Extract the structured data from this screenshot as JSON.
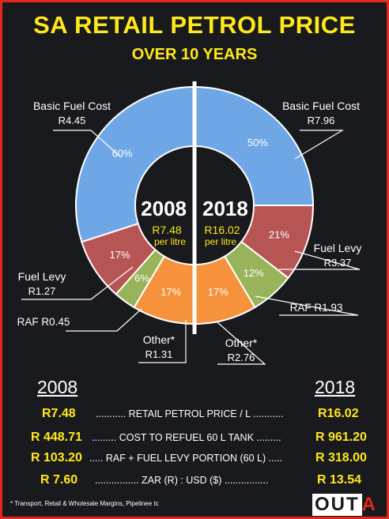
{
  "header": {
    "title": "SA RETAIL PETROL PRICE",
    "subtitle": "OVER 10 YEARS"
  },
  "chart_data": {
    "type": "pie",
    "title": "SA RETAIL PETROL PRICE",
    "subtitle": "OVER 10 YEARS",
    "charts": [
      {
        "year": "2008",
        "total": "R7.48",
        "unit": "per litre",
        "slices": [
          {
            "name": "Basic Fuel Cost",
            "value_label": "R4.45",
            "pct": 60,
            "pct_label": "60%",
            "color": "#6fa7e6"
          },
          {
            "name": "Fuel Levy",
            "value_label": "R1.27",
            "pct": 17,
            "pct_label": "17%",
            "color": "#b65554"
          },
          {
            "name": "RAF",
            "value_label": "R0.45",
            "pct": 6,
            "pct_label": "6%",
            "color": "#98b45a"
          },
          {
            "name": "Other*",
            "value_label": "R1.31",
            "pct": 17,
            "pct_label": "17%",
            "color": "#f5923b"
          }
        ]
      },
      {
        "year": "2018",
        "total": "R16.02",
        "unit": "per litre",
        "slices": [
          {
            "name": "Basic Fuel Cost",
            "value_label": "R7.96",
            "pct": 50,
            "pct_label": "50%",
            "color": "#6fa7e6"
          },
          {
            "name": "Fuel Levy",
            "value_label": "R3.37",
            "pct": 21,
            "pct_label": "21%",
            "color": "#b65554"
          },
          {
            "name": "RAF",
            "value_label": "R1.93",
            "pct": 12,
            "pct_label": "12%",
            "color": "#98b45a"
          },
          {
            "name": "Other*",
            "value_label": "R2.76",
            "pct": 17,
            "pct_label": "17%",
            "color": "#f5923b"
          }
        ]
      }
    ]
  },
  "table": {
    "year_left": "2008",
    "year_right": "2018",
    "rows": [
      {
        "left": "R7.48",
        "label": "........... RETAIL PETROL PRICE / L ...........",
        "right": "R16.02"
      },
      {
        "left": "R 448.71",
        "label": "......... COST TO REFUEL 60 L TANK .........",
        "right": "R 961.20"
      },
      {
        "left": "R 103.20",
        "label": "..... RAF + FUEL LEVY PORTION (60 L) .....",
        "right": "R 318.00"
      },
      {
        "left": "R 7.60",
        "label": "................ ZAR (R) : USD ($) ................",
        "right": "R 13.54"
      }
    ]
  },
  "footnote": "* Transport, Retail & Wholesale Margins, Pipelinee tc",
  "logo": "OUTA"
}
